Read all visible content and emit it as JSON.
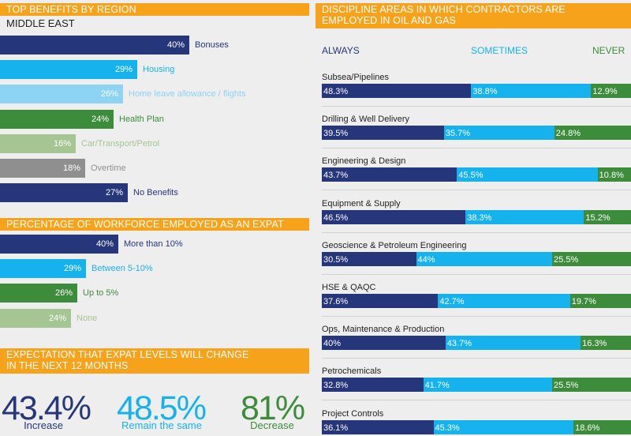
{
  "colors": {
    "orange": "#f7a21b",
    "navy": "#26367a",
    "blue": "#15b2ee",
    "lightblue": "#8dd3f3",
    "green": "#3d8c3c",
    "lightgreen": "#a5c593",
    "grey": "#8f8f8f",
    "lightgrey": "#a7c69a"
  },
  "benefits": {
    "title": "TOP BENEFITS BY REGION",
    "region": "MIDDLE EAST",
    "chart_data": {
      "type": "bar",
      "categories": [
        "Bonuses",
        "Housing",
        "Home leave allowance / flights",
        "Health Plan",
        "Car/Transport/Petrol",
        "Overtime",
        "No Benefits"
      ],
      "values": [
        40,
        29,
        26,
        24,
        16,
        18,
        27
      ],
      "value_labels": [
        "40%",
        "29%",
        "26%",
        "24%",
        "16%",
        "18%",
        "27%"
      ],
      "bar_colors": [
        "#26367a",
        "#15b2ee",
        "#8dd3f3",
        "#3d8c3c",
        "#a5c593",
        "#8f8f8f",
        "#26367a"
      ],
      "label_colors": [
        "#26367a",
        "#15b2ee",
        "#8dd3f3",
        "#3d8c3c",
        "#a5c593",
        "#8f8f8f",
        "#26367a"
      ]
    }
  },
  "workforce": {
    "title": "PERCENTAGE OF WORKFORCE EMPLOYED AS AN EXPAT",
    "chart_data": {
      "type": "bar",
      "categories": [
        "More than 10%",
        "Between 5-10%",
        "Up to 5%",
        "None"
      ],
      "values": [
        40,
        29,
        26,
        24
      ],
      "value_labels": [
        "40%",
        "29%",
        "26%",
        "24%"
      ],
      "bar_colors": [
        "#26367a",
        "#15b2ee",
        "#3d8c3c",
        "#a5c593"
      ],
      "label_colors": [
        "#26367a",
        "#15b2ee",
        "#3d8c3c",
        "#a5c593"
      ]
    }
  },
  "expectation": {
    "title_line1": "EXPECTATION THAT EXPAT LEVELS WILL CHANGE",
    "title_line2": "IN THE NEXT 12 MONTHS",
    "stats": [
      {
        "value": "43.4%",
        "caption": "Increase",
        "color": "#26367a"
      },
      {
        "value": "48.5%",
        "caption": "Remain the same",
        "color": "#15b2ee"
      },
      {
        "value": "81%",
        "caption": "Decrease",
        "color": "#3d8c3c"
      }
    ]
  },
  "disciplines": {
    "title_line1": "DISCIPLINE AREAS IN WHICH CONTRACTORS ARE",
    "title_line2": "EMPLOYED IN OIL AND GAS",
    "col_always": "ALWAYS",
    "col_sometimes": "SOMETIMES",
    "col_never": "NEVER",
    "chart_data": {
      "type": "bar",
      "stacked": true,
      "categories": [
        "Subsea/Pipelines",
        "Drilling & Well Delivery",
        "Engineering & Design",
        "Equipment & Supply",
        "Geoscience & Petroleum Engineering",
        "HSE & QAQC",
        "Ops, Maintenance & Production",
        "Petrochemicals",
        "Project Controls"
      ],
      "series": [
        {
          "name": "ALWAYS",
          "color": "#26367a",
          "values": [
            48.3,
            39.5,
            43.7,
            46.5,
            30.5,
            37.6,
            40,
            32.8,
            36.1
          ],
          "labels": [
            "48.3%",
            "39.5%",
            "43.7%",
            "46.5%",
            "30.5%",
            "37.6%",
            "40%",
            "32.8%",
            "36.1%"
          ]
        },
        {
          "name": "SOMETIMES",
          "color": "#15b2ee",
          "values": [
            38.8,
            35.7,
            45.5,
            38.3,
            44,
            42.7,
            43.7,
            41.7,
            45.3
          ],
          "labels": [
            "38.8%",
            "35.7%",
            "45.5%",
            "38.3%",
            "44%",
            "42.7%",
            "43.7%",
            "41.7%",
            "45.3%"
          ]
        },
        {
          "name": "NEVER",
          "color": "#3d8c3c",
          "values": [
            12.9,
            24.8,
            10.8,
            15.2,
            25.5,
            19.7,
            16.3,
            25.5,
            18.6
          ],
          "labels": [
            "12.9%",
            "24.8%",
            "10.8%",
            "15.2%",
            "25.5%",
            "19.7%",
            "16.3%",
            "25.5%",
            "18.6%"
          ]
        }
      ]
    }
  }
}
